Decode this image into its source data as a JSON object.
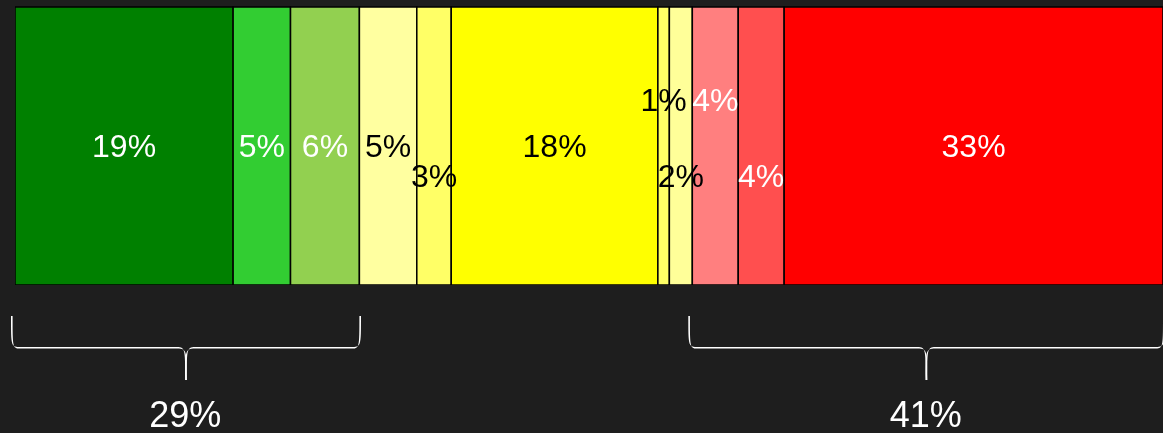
{
  "chart_data": {
    "type": "bar",
    "orientation": "horizontal",
    "stacked": true,
    "categories": [
      null
    ],
    "xlim": [
      0,
      100
    ],
    "tick_labels": false,
    "grid": false,
    "legend": false,
    "series": [
      {
        "color": "#008000",
        "values": [
          19
        ],
        "value_labels": [
          "19%"
        ]
      },
      {
        "color": "#32cd32",
        "values": [
          5
        ],
        "value_labels": [
          "5%"
        ]
      },
      {
        "color": "#92d050",
        "values": [
          6
        ],
        "value_labels": [
          "6%"
        ]
      },
      {
        "color": "#ffffa0",
        "values": [
          5
        ],
        "value_labels": [
          "5%"
        ]
      },
      {
        "color": "#ffff66",
        "values": [
          3
        ],
        "value_labels": [
          "3%"
        ]
      },
      {
        "color": "#ffff00",
        "values": [
          18
        ],
        "value_labels": [
          "18%"
        ]
      },
      {
        "color": "#ffff66",
        "values": [
          1
        ],
        "value_labels": [
          "1%"
        ]
      },
      {
        "color": "#ffff99",
        "values": [
          2
        ],
        "value_labels": [
          "2%"
        ]
      },
      {
        "color": "#ff7f7f",
        "values": [
          4
        ],
        "value_labels": [
          "4%"
        ]
      },
      {
        "color": "#ff4f4f",
        "values": [
          4
        ],
        "value_labels": [
          "4%"
        ]
      },
      {
        "color": "#ff0000",
        "values": [
          33
        ],
        "value_labels": [
          "33%"
        ]
      }
    ],
    "annotations": [
      "29%",
      "41%"
    ]
  }
}
